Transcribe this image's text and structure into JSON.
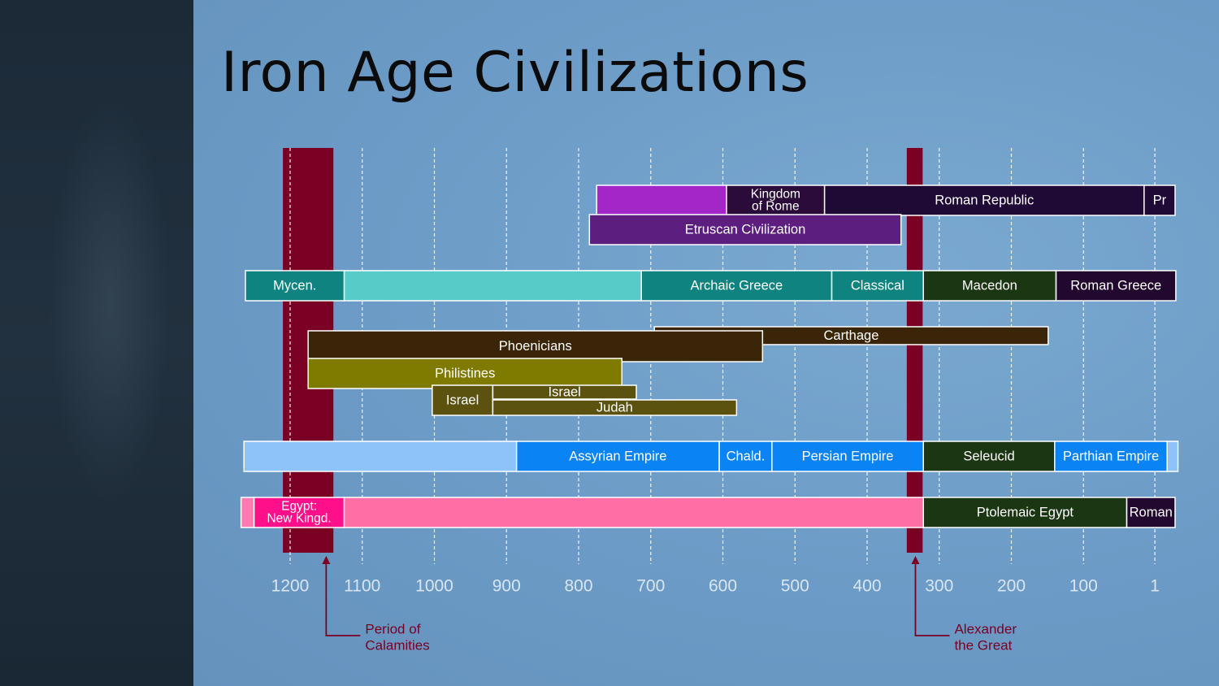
{
  "title": "Iron Age Civilizations",
  "colors": {
    "background": "#6f9ec7",
    "calamity": "#7a0024",
    "tick_label": "#d9e6f2",
    "annotation": "#7a0024"
  },
  "chart_data": {
    "type": "timeline",
    "title": "Iron Age Civilizations",
    "x_unit": "year BC",
    "x_range": [
      1270,
      -30
    ],
    "ticks": [
      1200,
      1100,
      1000,
      900,
      800,
      700,
      600,
      500,
      400,
      300,
      200,
      100,
      1
    ],
    "periods": [
      {
        "name": "period-of-calamities",
        "start": 1210,
        "end": 1140
      },
      {
        "name": "alexander-the-great",
        "start": 345,
        "end": 323
      }
    ],
    "annotations": [
      {
        "name": "period-of-calamities-note",
        "year": 1150,
        "lines": [
          "Period of",
          "Calamities"
        ]
      },
      {
        "name": "alexander-note",
        "year": 333,
        "lines": [
          "Alexander",
          "the Great"
        ]
      }
    ],
    "bars": [
      {
        "label": "",
        "lines": [],
        "start": 775,
        "end": 595,
        "row": 0,
        "color": "#a326c9"
      },
      {
        "label": "Kingdom of Rome",
        "lines": [
          "Kingdom",
          "of Rome"
        ],
        "start": 595,
        "end": 459,
        "row": 0,
        "color": "#2a0b3a"
      },
      {
        "label": "Roman Republic",
        "lines": [
          "Roman Republic"
        ],
        "start": 459,
        "end": 16,
        "row": 0,
        "color": "#1f0a35"
      },
      {
        "label": "Pr",
        "lines": [
          "Pr"
        ],
        "start": 16,
        "end": -27,
        "row": 0,
        "color": "#1f0a35"
      },
      {
        "label": "Etruscan Civilization",
        "lines": [
          "Etruscan Civilization"
        ],
        "start": 785,
        "end": 353,
        "row": 1,
        "color": "#5c1f7f"
      },
      {
        "label": "Mycen.",
        "lines": [
          "Mycen."
        ],
        "start": 1262,
        "end": 1125,
        "row": 2,
        "color": "#0f837f"
      },
      {
        "label": "",
        "lines": [],
        "start": 1125,
        "end": 713,
        "row": 2,
        "color": "#57cbc8"
      },
      {
        "label": "Archaic Greece",
        "lines": [
          "Archaic Greece"
        ],
        "start": 713,
        "end": 449,
        "row": 2,
        "color": "#0f837f"
      },
      {
        "label": "Classical",
        "lines": [
          "Classical"
        ],
        "start": 449,
        "end": 322,
        "row": 2,
        "color": "#0f837f"
      },
      {
        "label": "Macedon",
        "lines": [
          "Macedon"
        ],
        "start": 322,
        "end": 138,
        "row": 2,
        "color": "#1b3613"
      },
      {
        "label": "Roman Greece",
        "lines": [
          "Roman Greece"
        ],
        "start": 138,
        "end": -28,
        "row": 2,
        "color": "#22082f"
      },
      {
        "label": "Carthage",
        "lines": [
          "Carthage"
        ],
        "start": 695,
        "end": 149,
        "row": 3,
        "color": "#3a2508"
      },
      {
        "label": "Phoenicians",
        "lines": [
          "Phoenicians"
        ],
        "start": 1175,
        "end": 545,
        "row": 4,
        "color": "#3a2508"
      },
      {
        "label": "Philistines",
        "lines": [
          "Philistines"
        ],
        "start": 1175,
        "end": 740,
        "row": 5,
        "color": "#7f7a00"
      },
      {
        "label": "Israel",
        "lines": [
          "Israel"
        ],
        "start": 1003,
        "end": 919,
        "row": 6,
        "color": "#5c5210"
      },
      {
        "label": "Israel",
        "lines": [
          "Israel"
        ],
        "start": 919,
        "end": 720,
        "row": 7,
        "color": "#5c5210"
      },
      {
        "label": "Judah",
        "lines": [
          "Judah"
        ],
        "start": 919,
        "end": 581,
        "row": 8,
        "color": "#5c5210"
      },
      {
        "label": "",
        "lines": [],
        "start": 1264,
        "end": 886,
        "row": 9,
        "color": "#8ec3fa"
      },
      {
        "label": "Assyrian Empire",
        "lines": [
          "Assyrian Empire"
        ],
        "start": 886,
        "end": 605,
        "row": 9,
        "color": "#0a84f5"
      },
      {
        "label": "Chald.",
        "lines": [
          "Chald."
        ],
        "start": 605,
        "end": 532,
        "row": 9,
        "color": "#0a84f5"
      },
      {
        "label": "Persian Empire",
        "lines": [
          "Persian Empire"
        ],
        "start": 532,
        "end": 322,
        "row": 9,
        "color": "#0a84f5"
      },
      {
        "label": "Seleucid",
        "lines": [
          "Seleucid"
        ],
        "start": 322,
        "end": 140,
        "row": 9,
        "color": "#1b3613"
      },
      {
        "label": "Parthian Empire",
        "lines": [
          "Parthian Empire"
        ],
        "start": 140,
        "end": -16,
        "row": 9,
        "color": "#0a84f5"
      },
      {
        "label": "",
        "lines": [],
        "start": -16,
        "end": -31,
        "row": 9,
        "color": "#8ec3fa"
      },
      {
        "label": "",
        "lines": [],
        "start": 1268,
        "end": 1250,
        "row": 10,
        "color": "#ff7ab5"
      },
      {
        "label": "Egypt: New Kingd.",
        "lines": [
          "Egypt:",
          "New Kingd."
        ],
        "start": 1250,
        "end": 1125,
        "row": 10,
        "color": "#ff0f8a"
      },
      {
        "label": "",
        "lines": [],
        "start": 1125,
        "end": 322,
        "row": 10,
        "color": "#ff6ea5"
      },
      {
        "label": "Ptolemaic Egypt",
        "lines": [
          "Ptolemaic Egypt"
        ],
        "start": 322,
        "end": 40,
        "row": 10,
        "color": "#1b3613"
      },
      {
        "label": "Roman",
        "lines": [
          "Roman"
        ],
        "start": 40,
        "end": -27,
        "row": 10,
        "color": "#22082f"
      }
    ]
  }
}
